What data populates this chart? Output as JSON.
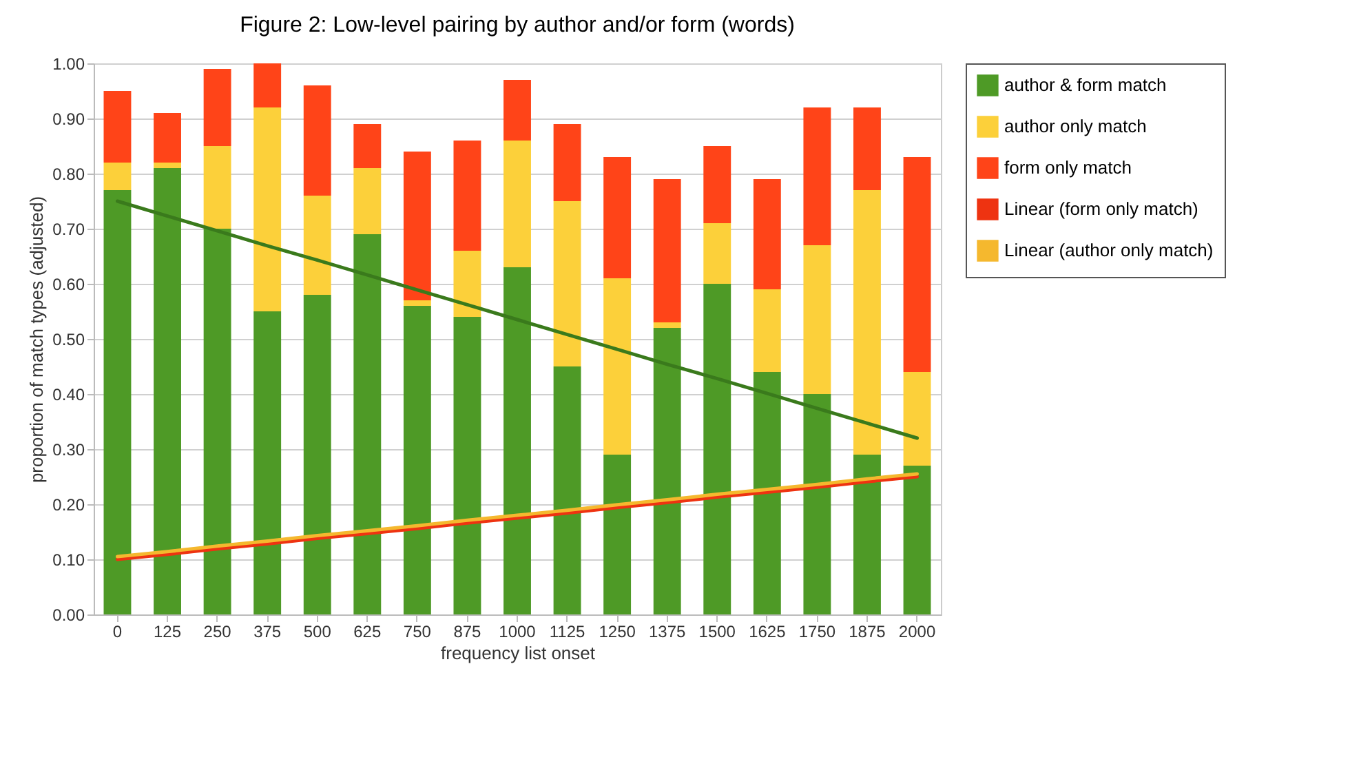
{
  "chart_data": {
    "type": "bar",
    "title": "Figure 2: Low-level pairing by author and/or form (words)",
    "xlabel": "frequency list onset",
    "ylabel": "proportion of match types (adjusted)",
    "categories": [
      "0",
      "125",
      "250",
      "375",
      "500",
      "625",
      "750",
      "875",
      "1000",
      "1125",
      "1250",
      "1375",
      "1500",
      "1625",
      "1750",
      "1875",
      "2000"
    ],
    "stacked": true,
    "series": [
      {
        "name": "author & form match",
        "color": "#4e9a26",
        "values": [
          0.77,
          0.81,
          0.7,
          0.55,
          0.58,
          0.69,
          0.56,
          0.54,
          0.63,
          0.45,
          0.29,
          0.52,
          0.6,
          0.44,
          0.4,
          0.29,
          0.27
        ]
      },
      {
        "name": "author only match",
        "color": "#fcd03a",
        "values": [
          0.05,
          0.01,
          0.15,
          0.37,
          0.18,
          0.12,
          0.01,
          0.12,
          0.23,
          0.3,
          0.32,
          0.01,
          0.11,
          0.15,
          0.27,
          0.48,
          0.17
        ]
      },
      {
        "name": "form only match",
        "color": "#ff4418",
        "values": [
          0.13,
          0.09,
          0.14,
          0.08,
          0.2,
          0.08,
          0.27,
          0.2,
          0.11,
          0.14,
          0.22,
          0.26,
          0.14,
          0.2,
          0.25,
          0.15,
          0.39
        ]
      },
      {
        "name": "Linear (form only match)",
        "type": "line",
        "color": "#ee3311",
        "values": [
          0.1,
          0.109,
          0.119,
          0.128,
          0.138,
          0.147,
          0.156,
          0.166,
          0.175,
          0.184,
          0.194,
          0.203,
          0.213,
          0.222,
          0.231,
          0.241,
          0.25
        ]
      },
      {
        "name": "Linear (author only match)",
        "type": "line",
        "color": "#f5b82e",
        "values": [
          0.105,
          0.114,
          0.124,
          0.133,
          0.143,
          0.152,
          0.161,
          0.171,
          0.18,
          0.189,
          0.199,
          0.208,
          0.218,
          0.227,
          0.236,
          0.246,
          0.255
        ]
      },
      {
        "type": "line",
        "color": "#3a7a1c",
        "values": [
          0.75,
          0.723,
          0.696,
          0.669,
          0.643,
          0.616,
          0.589,
          0.562,
          0.535,
          0.508,
          0.481,
          0.454,
          0.428,
          0.401,
          0.374,
          0.347,
          0.32
        ]
      }
    ],
    "ylim": [
      0,
      1
    ],
    "yticks": [
      {
        "value": 0,
        "label": "0.00"
      },
      {
        "value": 0.1,
        "label": "0.10"
      },
      {
        "value": 0.2,
        "label": "0.20"
      },
      {
        "value": 0.3,
        "label": "0.30"
      },
      {
        "value": 0.4,
        "label": "0.40"
      },
      {
        "value": 0.5,
        "label": "0.50"
      },
      {
        "value": 0.6,
        "label": "0.60"
      },
      {
        "value": 0.7,
        "label": "0.70"
      },
      {
        "value": 0.8,
        "label": "0.80"
      },
      {
        "value": 0.9,
        "label": "0.90"
      },
      {
        "value": 1,
        "label": "1.00"
      }
    ],
    "grid": "y",
    "legend": "right"
  }
}
